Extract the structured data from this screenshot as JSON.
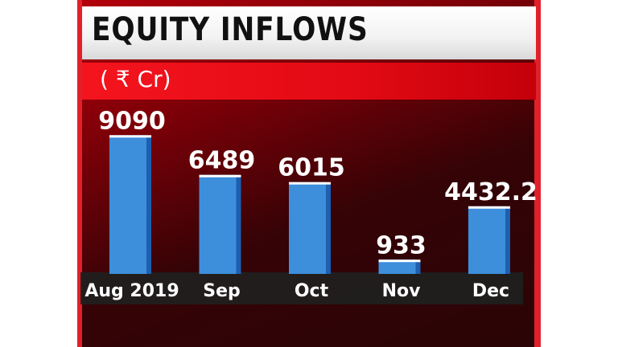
{
  "header": {
    "title": "EQUITY INFLOWS",
    "unit": "( ₹ Cr)"
  },
  "colors": {
    "bar_face": "#3d8fdc",
    "bar_side": "#1d5fb0",
    "bar_top": "#ffffff",
    "accent_red": "#e20a14"
  },
  "chart_data": {
    "type": "bar",
    "title": "EQUITY INFLOWS",
    "subtitle": "( ₹ Cr)",
    "categories": [
      "Aug 2019",
      "Sep",
      "Oct",
      "Nov",
      "Dec"
    ],
    "values": [
      9090,
      6489,
      6015,
      933,
      4432.2
    ],
    "value_labels": [
      "9090",
      "6489",
      "6015",
      "933",
      "4432.2"
    ],
    "ylim": [
      0,
      10000
    ],
    "grid": false,
    "legend": "none"
  }
}
